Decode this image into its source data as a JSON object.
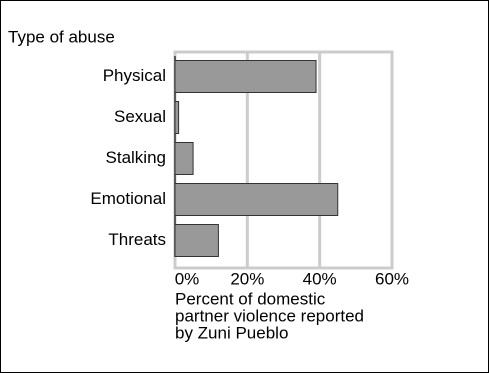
{
  "chart_data": {
    "type": "bar",
    "orientation": "horizontal",
    "y_label": "Type of abuse",
    "x_label": [
      "Percent of domestic",
      "partner violence reported",
      "by Zuni Pueblo"
    ],
    "categories": [
      "Physical",
      "Sexual",
      "Stalking",
      "Emotional",
      "Threats"
    ],
    "values": [
      39,
      1,
      5,
      45,
      12
    ],
    "color": "#999999",
    "xlim": [
      0,
      60
    ],
    "xticks": [
      {
        "value": 0,
        "label": "0%"
      },
      {
        "value": 20,
        "label": "20%"
      },
      {
        "value": 40,
        "label": "40%"
      },
      {
        "value": 60,
        "label": "60%"
      }
    ],
    "grid": true
  }
}
